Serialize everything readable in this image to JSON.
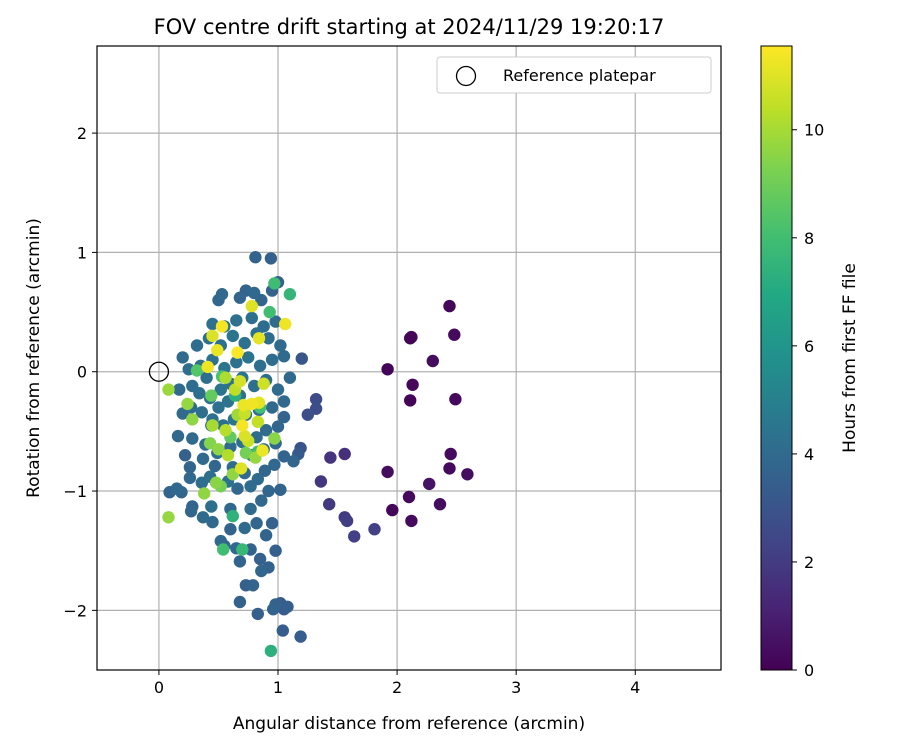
{
  "chart_data": {
    "type": "scatter",
    "title": "FOV centre drift starting at 2024/11/29 19:20:17",
    "xlabel": "Angular distance from reference (arcmin)",
    "ylabel": "Rotation from reference (arcmin)",
    "colorbar_label": "Hours from first FF file",
    "colormap": "viridis",
    "xlim": [
      -0.52,
      4.72
    ],
    "ylim": [
      -2.5,
      2.73
    ],
    "clim": [
      0,
      11.55
    ],
    "xticks": [
      0,
      1,
      2,
      3,
      4
    ],
    "yticks": [
      -2,
      -1,
      0,
      1,
      2
    ],
    "colorbar_ticks": [
      0,
      2,
      4,
      6,
      8,
      10
    ],
    "grid": true,
    "legend": {
      "position": "top-right",
      "entries": [
        {
          "label": "Reference platepar",
          "marker": "open-circle",
          "x": 0,
          "y": 0
        }
      ]
    },
    "points": [
      [
        1.92,
        0.02,
        0.1
      ],
      [
        2.12,
        0.29,
        0.1
      ],
      [
        2.11,
        0.28,
        0.1
      ],
      [
        2.13,
        -0.11,
        0.2
      ],
      [
        2.11,
        -0.24,
        0.1
      ],
      [
        2.44,
        0.55,
        0.2
      ],
      [
        2.48,
        0.31,
        0.3
      ],
      [
        2.3,
        0.09,
        0.4
      ],
      [
        2.49,
        -0.23,
        0.3
      ],
      [
        2.45,
        -0.69,
        0.3
      ],
      [
        2.44,
        -0.81,
        0.3
      ],
      [
        2.59,
        -0.86,
        0.4
      ],
      [
        2.27,
        -0.94,
        0.6
      ],
      [
        1.92,
        -0.84,
        0.4
      ],
      [
        2.1,
        -1.05,
        0.3
      ],
      [
        1.96,
        -1.16,
        0.2
      ],
      [
        2.12,
        -1.25,
        0.3
      ],
      [
        2.36,
        -1.11,
        0.4
      ],
      [
        1.56,
        -0.69,
        1.6
      ],
      [
        1.44,
        -0.72,
        1.7
      ],
      [
        1.36,
        -0.92,
        1.8
      ],
      [
        1.43,
        -1.11,
        1.9
      ],
      [
        1.56,
        -1.22,
        2.0
      ],
      [
        1.58,
        -1.25,
        2.1
      ],
      [
        1.64,
        -1.38,
        2.2
      ],
      [
        1.81,
        -1.32,
        2.2
      ],
      [
        1.32,
        -0.23,
        2.6
      ],
      [
        1.32,
        -0.31,
        2.7
      ],
      [
        1.25,
        -0.36,
        2.8
      ],
      [
        1.2,
        0.11,
        3.1
      ],
      [
        1.19,
        -0.64,
        3.0
      ],
      [
        1.17,
        -0.69,
        3.2
      ],
      [
        1.19,
        -2.22,
        3.4
      ],
      [
        1.04,
        -2.17,
        3.4
      ],
      [
        1.08,
        -1.97,
        3.5
      ],
      [
        1.02,
        -1.94,
        3.4
      ],
      [
        0.98,
        -1.95,
        3.6
      ],
      [
        1.05,
        -1.99,
        3.3
      ],
      [
        0.96,
        -1.99,
        3.7
      ],
      [
        0.83,
        -2.03,
        3.5
      ],
      [
        0.68,
        -1.93,
        3.6
      ],
      [
        0.73,
        -1.79,
        3.5
      ],
      [
        0.79,
        -1.79,
        3.7
      ],
      [
        0.92,
        -1.64,
        3.6
      ],
      [
        0.86,
        -1.67,
        3.8
      ],
      [
        0.85,
        -1.57,
        3.6
      ],
      [
        0.68,
        -1.59,
        3.7
      ],
      [
        0.65,
        -1.48,
        3.9
      ],
      [
        0.77,
        -1.49,
        3.6
      ],
      [
        0.98,
        -1.5,
        3.5
      ],
      [
        0.9,
        -1.37,
        3.7
      ],
      [
        0.55,
        -1.46,
        3.8
      ],
      [
        0.52,
        -1.42,
        3.9
      ],
      [
        0.72,
        -1.31,
        4.0
      ],
      [
        0.82,
        -1.27,
        3.8
      ],
      [
        0.95,
        -1.27,
        3.6
      ],
      [
        0.6,
        -1.32,
        3.7
      ],
      [
        0.45,
        -1.26,
        3.9
      ],
      [
        0.37,
        -1.22,
        4.0
      ],
      [
        0.27,
        -1.17,
        3.8
      ],
      [
        0.28,
        -1.13,
        3.7
      ],
      [
        0.44,
        -1.13,
        4.2
      ],
      [
        0.6,
        -1.15,
        3.9
      ],
      [
        0.77,
        -1.15,
        4.0
      ],
      [
        0.86,
        -1.08,
        3.9
      ],
      [
        0.92,
        -1.0,
        3.8
      ],
      [
        1.02,
        -0.99,
        3.7
      ],
      [
        0.19,
        -1.01,
        3.8
      ],
      [
        0.15,
        -0.98,
        3.9
      ],
      [
        0.09,
        -1.01,
        3.7
      ],
      [
        0.36,
        -0.93,
        4.1
      ],
      [
        0.43,
        -0.88,
        4.2
      ],
      [
        0.26,
        -0.89,
        3.9
      ],
      [
        0.26,
        -0.8,
        3.8
      ],
      [
        0.22,
        -0.7,
        3.6
      ],
      [
        0.37,
        -0.73,
        4.0
      ],
      [
        0.47,
        -0.79,
        3.8
      ],
      [
        0.58,
        -0.92,
        4.3
      ],
      [
        0.66,
        -0.98,
        3.9
      ],
      [
        0.77,
        -0.96,
        4.1
      ],
      [
        0.83,
        -0.9,
        4.0
      ],
      [
        0.89,
        -0.83,
        3.8
      ],
      [
        0.97,
        -0.78,
        3.9
      ],
      [
        1.05,
        -0.71,
        3.7
      ],
      [
        1.13,
        -0.75,
        3.8
      ],
      [
        0.16,
        -0.54,
        3.9
      ],
      [
        0.28,
        -0.56,
        4.0
      ],
      [
        0.39,
        -0.61,
        4.1
      ],
      [
        0.49,
        -0.68,
        4.2
      ],
      [
        0.6,
        -0.63,
        4.0
      ],
      [
        0.7,
        -0.59,
        4.3
      ],
      [
        0.82,
        -0.55,
        4.1
      ],
      [
        0.9,
        -0.49,
        4.0
      ],
      [
        1.0,
        -0.46,
        3.8
      ],
      [
        1.05,
        -0.38,
        3.7
      ],
      [
        0.2,
        -0.35,
        4.0
      ],
      [
        0.27,
        -0.3,
        4.1
      ],
      [
        0.36,
        -0.34,
        4.2
      ],
      [
        0.45,
        -0.4,
        4.3
      ],
      [
        0.54,
        -0.45,
        4.2
      ],
      [
        0.63,
        -0.4,
        4.4
      ],
      [
        0.73,
        -0.36,
        4.3
      ],
      [
        0.84,
        -0.32,
        4.1
      ],
      [
        0.95,
        -0.3,
        4.0
      ],
      [
        1.05,
        -0.25,
        3.9
      ],
      [
        0.17,
        -0.15,
        4.0
      ],
      [
        0.28,
        -0.12,
        4.1
      ],
      [
        0.34,
        -0.18,
        4.2
      ],
      [
        0.43,
        -0.22,
        4.3
      ],
      [
        0.52,
        -0.15,
        4.4
      ],
      [
        0.6,
        -0.1,
        4.3
      ],
      [
        0.7,
        -0.05,
        4.5
      ],
      [
        0.8,
        -0.12,
        4.2
      ],
      [
        0.9,
        -0.07,
        4.1
      ],
      [
        1.0,
        -0.15,
        4.0
      ],
      [
        1.1,
        -0.05,
        3.9
      ],
      [
        0.35,
        0.05,
        4.2
      ],
      [
        0.45,
        0.1,
        4.3
      ],
      [
        0.55,
        0.03,
        4.4
      ],
      [
        0.65,
        0.08,
        4.3
      ],
      [
        0.75,
        0.12,
        4.4
      ],
      [
        0.85,
        0.05,
        4.2
      ],
      [
        0.95,
        0.1,
        4.1
      ],
      [
        1.05,
        0.13,
        4.0
      ],
      [
        0.32,
        0.22,
        4.1
      ],
      [
        0.42,
        0.28,
        4.2
      ],
      [
        0.52,
        0.22,
        4.3
      ],
      [
        0.62,
        0.3,
        4.4
      ],
      [
        0.72,
        0.24,
        4.3
      ],
      [
        0.82,
        0.32,
        4.2
      ],
      [
        0.92,
        0.28,
        4.1
      ],
      [
        1.02,
        0.22,
        4.0
      ],
      [
        0.45,
        0.4,
        4.3
      ],
      [
        0.55,
        0.38,
        4.4
      ],
      [
        0.65,
        0.43,
        4.3
      ],
      [
        0.78,
        0.45,
        4.2
      ],
      [
        0.88,
        0.38,
        4.1
      ],
      [
        0.98,
        0.42,
        4.0
      ],
      [
        0.5,
        0.6,
        3.8
      ],
      [
        0.53,
        0.65,
        3.9
      ],
      [
        0.68,
        0.62,
        3.8
      ],
      [
        0.73,
        0.68,
        3.7
      ],
      [
        0.8,
        0.66,
        3.9
      ],
      [
        0.86,
        0.6,
        3.7
      ],
      [
        0.95,
        0.68,
        3.6
      ],
      [
        1.0,
        0.75,
        3.5
      ],
      [
        0.81,
        0.96,
        3.7
      ],
      [
        0.94,
        0.95,
        3.6
      ],
      [
        0.2,
        0.12,
        4.0
      ],
      [
        0.25,
        0.02,
        4.1
      ],
      [
        0.4,
        -0.05,
        4.2
      ],
      [
        0.5,
        -0.3,
        4.3
      ],
      [
        0.58,
        -0.25,
        4.4
      ],
      [
        0.68,
        -0.2,
        4.3
      ],
      [
        0.78,
        -0.7,
        4.1
      ],
      [
        0.88,
        -0.65,
        4.0
      ],
      [
        0.98,
        -0.6,
        3.9
      ],
      [
        0.44,
        -0.45,
        4.2
      ],
      [
        0.62,
        -0.8,
        4.1
      ],
      [
        0.72,
        -0.85,
        4.0
      ],
      [
        0.64,
        -0.2,
        7.3
      ],
      [
        0.97,
        0.74,
        7.9
      ],
      [
        0.93,
        0.5,
        8.0
      ],
      [
        1.1,
        0.65,
        7.6
      ],
      [
        0.32,
        0.01,
        8.4
      ],
      [
        0.53,
        -0.04,
        8.2
      ],
      [
        0.85,
        -0.3,
        8.1
      ],
      [
        0.83,
        -0.67,
        7.9
      ],
      [
        0.62,
        -1.21,
        7.4
      ],
      [
        0.54,
        -1.49,
        8.0
      ],
      [
        0.7,
        -1.49,
        7.7
      ],
      [
        0.94,
        -2.34,
        7.3
      ],
      [
        0.44,
        -0.2,
        8.8
      ],
      [
        0.6,
        -0.55,
        8.7
      ],
      [
        0.73,
        -0.68,
        9.1
      ],
      [
        0.38,
        -1.02,
        9.6
      ],
      [
        0.48,
        -0.93,
        9.5
      ],
      [
        0.52,
        -0.96,
        9.2
      ],
      [
        0.62,
        -0.86,
        9.6
      ],
      [
        0.81,
        -0.72,
        9.7
      ],
      [
        0.97,
        -0.56,
        9.5
      ],
      [
        0.43,
        -0.6,
        9.4
      ],
      [
        0.5,
        -0.65,
        9.6
      ],
      [
        0.28,
        -0.4,
        9.6
      ],
      [
        0.24,
        -0.27,
        9.7
      ],
      [
        0.08,
        -0.15,
        9.8
      ],
      [
        0.08,
        -1.22,
        9.7
      ],
      [
        0.45,
        -0.45,
        10.0
      ],
      [
        0.56,
        -0.49,
        10.3
      ],
      [
        0.66,
        -0.36,
        9.9
      ],
      [
        0.56,
        -0.05,
        10.1
      ],
      [
        0.64,
        -0.15,
        10.4
      ],
      [
        0.72,
        -0.35,
        10.6
      ],
      [
        0.83,
        -0.42,
        10.5
      ],
      [
        0.88,
        -0.1,
        10.7
      ],
      [
        0.72,
        -0.54,
        10.9
      ],
      [
        0.75,
        -0.58,
        10.6
      ],
      [
        0.69,
        -0.81,
        11.0
      ],
      [
        0.87,
        -0.66,
        11.2
      ],
      [
        0.78,
        -0.27,
        11.3
      ],
      [
        0.71,
        -0.28,
        11.2
      ],
      [
        0.84,
        -0.26,
        11.1
      ],
      [
        0.53,
        0.38,
        11.4
      ],
      [
        0.49,
        0.18,
        11.2
      ],
      [
        0.41,
        0.04,
        11.3
      ],
      [
        0.66,
        0.16,
        11.5
      ],
      [
        0.84,
        0.28,
        11.1
      ],
      [
        1.06,
        0.4,
        11.3
      ],
      [
        0.78,
        0.55,
        11.0
      ],
      [
        0.45,
        0.3,
        10.9
      ],
      [
        0.7,
        -0.45,
        11.4
      ],
      [
        0.68,
        -0.08,
        10.8
      ],
      [
        0.58,
        -0.7,
        10.2
      ]
    ]
  }
}
